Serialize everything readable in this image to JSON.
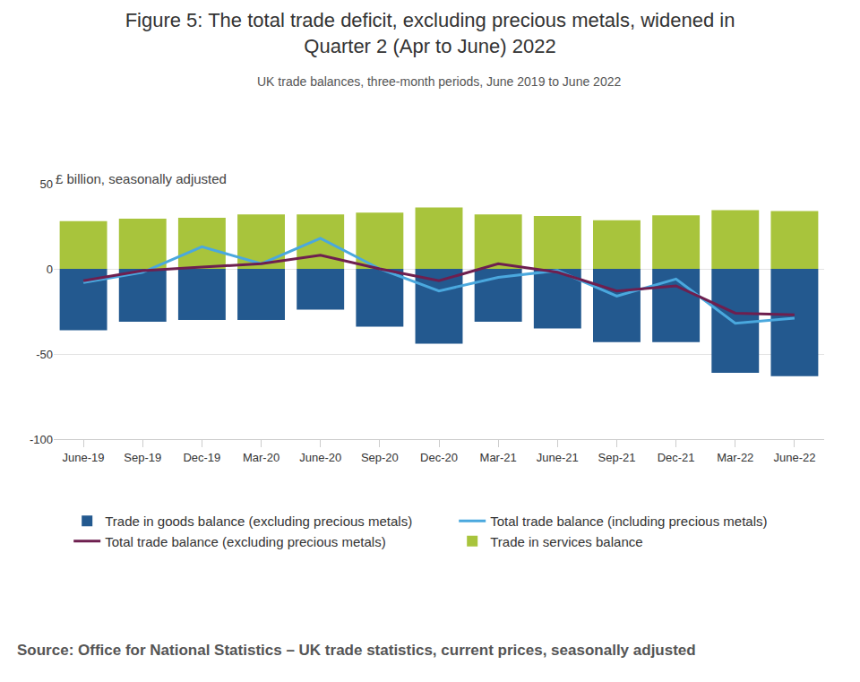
{
  "chart_data": {
    "type": "bar",
    "title": [
      "Figure 5: The total trade deficit, excluding precious metals, widened in",
      "Quarter 2 (Apr to June) 2022"
    ],
    "subtitle": "UK trade balances, three-month periods, June 2019 to June 2022",
    "y_label": "£ billion, seasonally adjusted",
    "source": "Source: Office for National Statistics – UK trade statistics, current prices, seasonally adjusted",
    "categories": [
      "June-19",
      "Sep-19",
      "Dec-19",
      "Mar-20",
      "June-20",
      "Sep-20",
      "Dec-20",
      "Mar-21",
      "June-21",
      "Sep-21",
      "Dec-21",
      "Mar-22",
      "June-22"
    ],
    "stacked": true,
    "grid": true,
    "legend": "bottom",
    "ylim": [
      -100,
      50
    ],
    "yticks": [
      -100,
      -50,
      0,
      50
    ],
    "series": [
      {
        "name": "Trade in goods balance (excluding precious metals)",
        "type": "bar",
        "color": "#23598f",
        "values": [
          -36,
          -31,
          -30,
          -30,
          -24,
          -34,
          -44,
          -31,
          -35,
          -43,
          -43,
          -61,
          -63
        ]
      },
      {
        "name": "Total trade balance (including precious metals)",
        "type": "line",
        "color": "#4aa8de",
        "line_style": "solid",
        "values": [
          -8,
          -2,
          13,
          3,
          18,
          0,
          -13,
          -5,
          -1,
          -16,
          -6,
          -32,
          -29
        ]
      },
      {
        "name": "Total trade balance (excluding precious metals)",
        "type": "line",
        "color": "#6e1f4f",
        "line_style": "solid",
        "values": [
          -7,
          -1,
          1,
          3,
          8,
          0,
          -7,
          3,
          -2,
          -13,
          -10,
          -26,
          -27
        ]
      },
      {
        "name": "Trade in services balance",
        "type": "bar",
        "color": "#a8c43c",
        "values": [
          28,
          29.5,
          30,
          32,
          32,
          33,
          36,
          32,
          31,
          28.5,
          31.5,
          34.5,
          34
        ]
      }
    ]
  }
}
